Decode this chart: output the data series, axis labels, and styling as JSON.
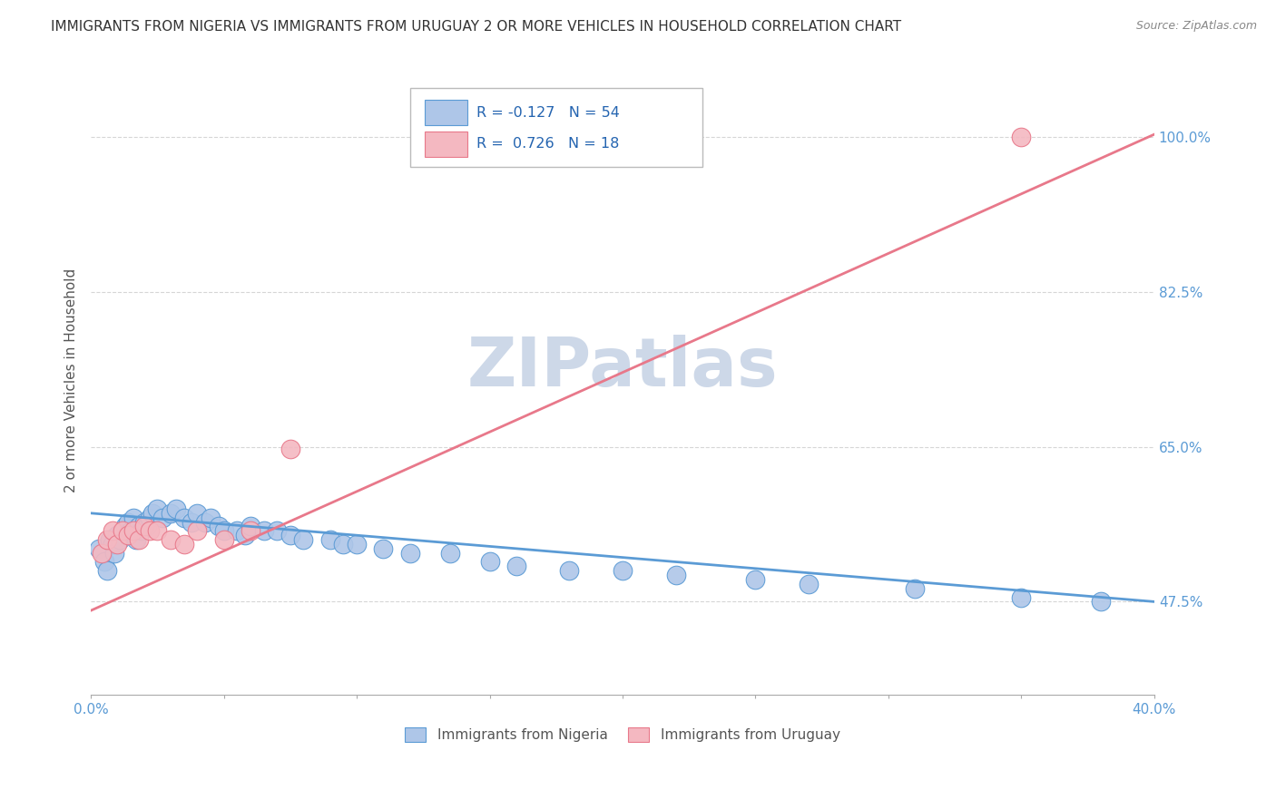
{
  "title": "IMMIGRANTS FROM NIGERIA VS IMMIGRANTS FROM URUGUAY 2 OR MORE VEHICLES IN HOUSEHOLD CORRELATION CHART",
  "source": "Source: ZipAtlas.com",
  "ylabel": "2 or more Vehicles in Household",
  "xlim": [
    0.0,
    0.4
  ],
  "ylim": [
    0.37,
    1.08
  ],
  "nigeria_R": -0.127,
  "nigeria_N": 54,
  "uruguay_R": 0.726,
  "uruguay_N": 18,
  "nigeria_color": "#aec6e8",
  "nigeria_edge_color": "#5b9bd5",
  "uruguay_color": "#f4b8c1",
  "uruguay_edge_color": "#e8788a",
  "nigeria_line_color": "#5b9bd5",
  "uruguay_line_color": "#e8788a",
  "background_color": "#ffffff",
  "grid_color": "#cccccc",
  "watermark_color": "#cdd8e8",
  "title_color": "#333333",
  "label_color": "#555555",
  "tick_label_color": "#5b9bd5",
  "xtick_values": [
    0.0,
    0.05,
    0.1,
    0.15,
    0.2,
    0.25,
    0.3,
    0.35,
    0.4
  ],
  "ytick_values": [
    0.475,
    0.65,
    0.825,
    1.0
  ],
  "ytick_labels": [
    "47.5%",
    "65.0%",
    "82.5%",
    "100.0%"
  ],
  "nigeria_line_y0": 0.575,
  "nigeria_line_y1": 0.475,
  "uruguay_line_y0": 0.465,
  "uruguay_line_y1": 1.003,
  "nigeria_x": [
    0.003,
    0.005,
    0.006,
    0.007,
    0.008,
    0.009,
    0.01,
    0.011,
    0.012,
    0.013,
    0.014,
    0.015,
    0.016,
    0.017,
    0.018,
    0.019,
    0.02,
    0.021,
    0.022,
    0.023,
    0.025,
    0.027,
    0.03,
    0.032,
    0.035,
    0.038,
    0.04,
    0.043,
    0.045,
    0.048,
    0.05,
    0.055,
    0.058,
    0.06,
    0.065,
    0.07,
    0.075,
    0.08,
    0.09,
    0.095,
    0.1,
    0.11,
    0.12,
    0.135,
    0.15,
    0.16,
    0.18,
    0.2,
    0.22,
    0.25,
    0.27,
    0.31,
    0.35,
    0.38
  ],
  "nigeria_y": [
    0.535,
    0.52,
    0.51,
    0.545,
    0.54,
    0.53,
    0.55,
    0.545,
    0.555,
    0.56,
    0.565,
    0.555,
    0.57,
    0.545,
    0.56,
    0.555,
    0.565,
    0.56,
    0.57,
    0.575,
    0.58,
    0.57,
    0.575,
    0.58,
    0.57,
    0.565,
    0.575,
    0.565,
    0.57,
    0.56,
    0.555,
    0.555,
    0.55,
    0.56,
    0.555,
    0.555,
    0.55,
    0.545,
    0.545,
    0.54,
    0.54,
    0.535,
    0.53,
    0.53,
    0.52,
    0.515,
    0.51,
    0.51,
    0.505,
    0.5,
    0.495,
    0.49,
    0.48,
    0.475
  ],
  "uruguay_x": [
    0.004,
    0.006,
    0.008,
    0.01,
    0.012,
    0.014,
    0.016,
    0.018,
    0.02,
    0.022,
    0.025,
    0.03,
    0.035,
    0.04,
    0.05,
    0.06,
    0.075,
    0.35
  ],
  "uruguay_y": [
    0.53,
    0.545,
    0.555,
    0.54,
    0.555,
    0.55,
    0.555,
    0.545,
    0.56,
    0.555,
    0.555,
    0.545,
    0.54,
    0.555,
    0.545,
    0.555,
    0.648,
    1.0
  ]
}
